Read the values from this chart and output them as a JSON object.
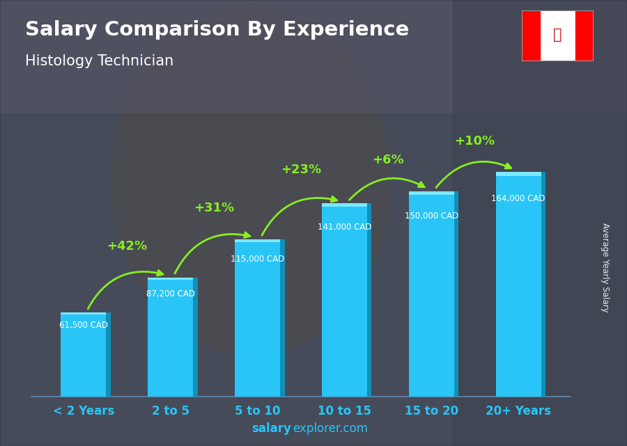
{
  "title": "Salary Comparison By Experience",
  "subtitle": "Histology Technician",
  "categories": [
    "< 2 Years",
    "2 to 5",
    "5 to 10",
    "10 to 15",
    "15 to 20",
    "20+ Years"
  ],
  "values": [
    61500,
    87200,
    115000,
    141000,
    150000,
    164000
  ],
  "salary_labels": [
    "61,500 CAD",
    "87,200 CAD",
    "115,000 CAD",
    "141,000 CAD",
    "150,000 CAD",
    "164,000 CAD"
  ],
  "pct_labels": [
    "+42%",
    "+31%",
    "+23%",
    "+6%",
    "+10%"
  ],
  "bar_face_color": "#29C5F6",
  "bar_right_color": "#1090B8",
  "bar_top_color": "#7DE8FF",
  "pct_color": "#88EE22",
  "salary_color": "#FFFFFF",
  "title_color": "#FFFFFF",
  "subtitle_color": "#FFFFFF",
  "xlabel_color": "#29C5F6",
  "watermark_bold": "salary",
  "watermark_normal": "explorer.com",
  "ylabel_text": "Average Yearly Salary",
  "ylim": [
    0,
    195000
  ],
  "bar_width": 0.52,
  "bg_dark_color": "#2a2a3a",
  "bg_photo_color_top": "#606878",
  "bg_photo_color_bottom": "#404855"
}
